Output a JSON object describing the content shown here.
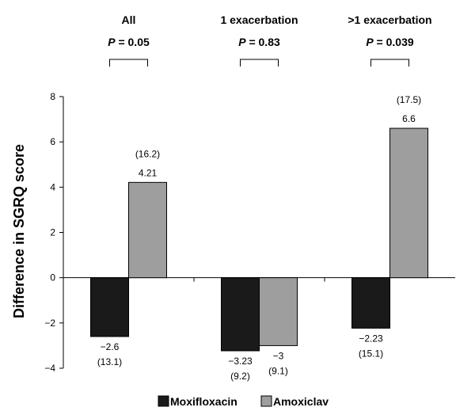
{
  "chart_data": {
    "type": "bar",
    "categories": [
      "All",
      "1 exacerbation",
      ">1 exacerbation"
    ],
    "p_values": [
      "0.05",
      "0.83",
      "0.039"
    ],
    "p_prefix": "P",
    "p_sep": " = ",
    "series": [
      {
        "name": "Moxifloxacin",
        "color": "#1a1a1a",
        "values": [
          -2.6,
          -3.23,
          -2.23
        ],
        "value_labels": [
          "−2.6",
          "−3.23",
          "−2.23"
        ],
        "sd_labels": [
          "(13.1)",
          "(9.2)",
          "(15.1)"
        ]
      },
      {
        "name": "Amoxiclav",
        "color": "#9e9e9e",
        "values": [
          4.21,
          -3,
          6.6
        ],
        "value_labels": [
          "4.21",
          "−3",
          "6.6"
        ],
        "sd_labels": [
          "(16.2)",
          "(9.1)",
          "(17.5)"
        ]
      }
    ],
    "ylabel": "Difference in SGRQ score",
    "ylim": [
      -4,
      8
    ],
    "yticks": [
      -4,
      -2,
      0,
      2,
      4,
      6,
      8
    ],
    "ytick_labels": [
      "−4",
      "−2",
      "0",
      "2",
      "4",
      "6",
      "8"
    ],
    "grid": false,
    "legend_position": "bottom-center"
  }
}
